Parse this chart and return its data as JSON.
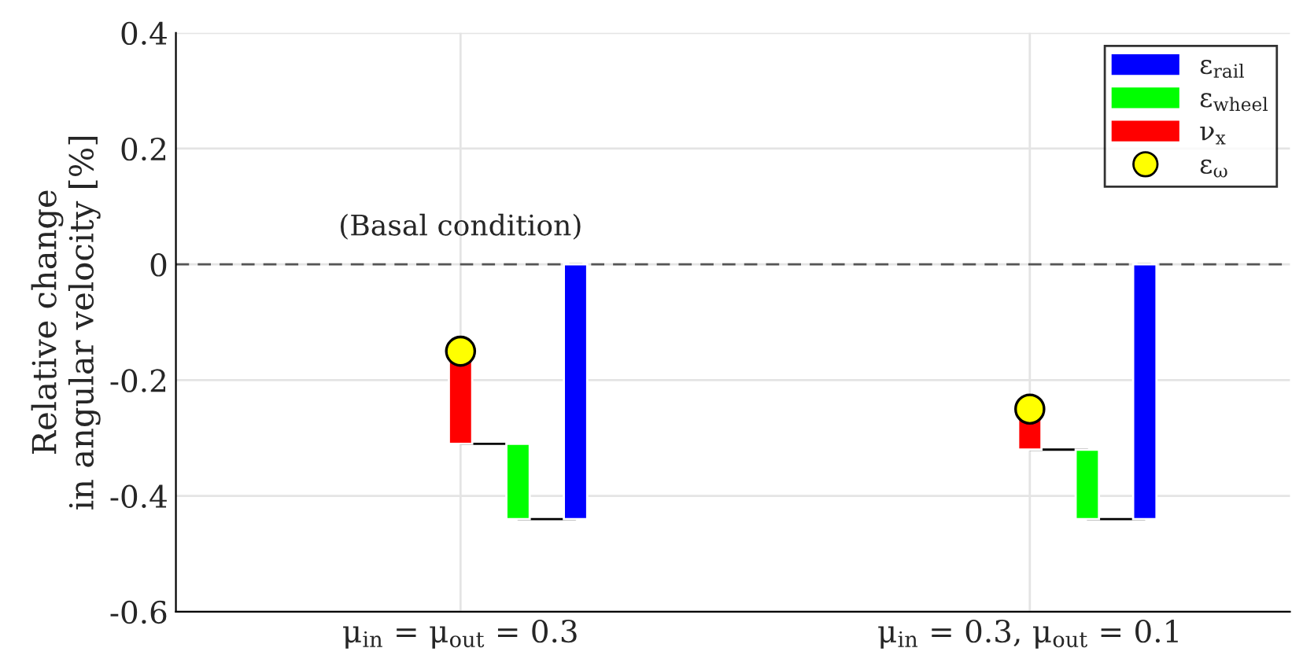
{
  "chart_data": {
    "type": "bar",
    "ylabel": "Relative change\nin angular velocity [%]",
    "categories": [
      "μ$_{in}$ = μ$_{out}$ = 0.3",
      "μ$_{in}$ = 0.3, μ$_{out}$ = 0.1"
    ],
    "series": [
      {
        "name": "ε$_{rail}$",
        "color": "#0000ff",
        "base": [
          0,
          0
        ],
        "values": [
          -0.44,
          -0.44
        ]
      },
      {
        "name": "ε$_{wheel}$",
        "color": "#00ff00",
        "base": [
          -0.31,
          -0.32
        ],
        "values": [
          -0.13,
          -0.12
        ]
      },
      {
        "name": "ν$_{x}$",
        "color": "#ff0000",
        "base": [
          -0.15,
          -0.25
        ],
        "values": [
          -0.16,
          -0.07
        ]
      },
      {
        "name": "ε$_{ω}$",
        "type": "scatter",
        "color": "#ffff00",
        "marker": "circle",
        "values": [
          -0.15,
          -0.25
        ]
      }
    ],
    "ylim": [
      -0.6,
      0.4
    ],
    "yticks": [
      {
        "value": -0.6,
        "label": "-0.6"
      },
      {
        "value": -0.4,
        "label": "-0.4"
      },
      {
        "value": -0.2,
        "label": "-0.2"
      },
      0,
      0.2,
      0.4
    ],
    "ref_lines": [
      {
        "axis": "y",
        "value": 0,
        "label": "(Basal condition)",
        "color": "#555555",
        "line_style": "dashed"
      }
    ],
    "grid": true,
    "legend": "top right"
  }
}
